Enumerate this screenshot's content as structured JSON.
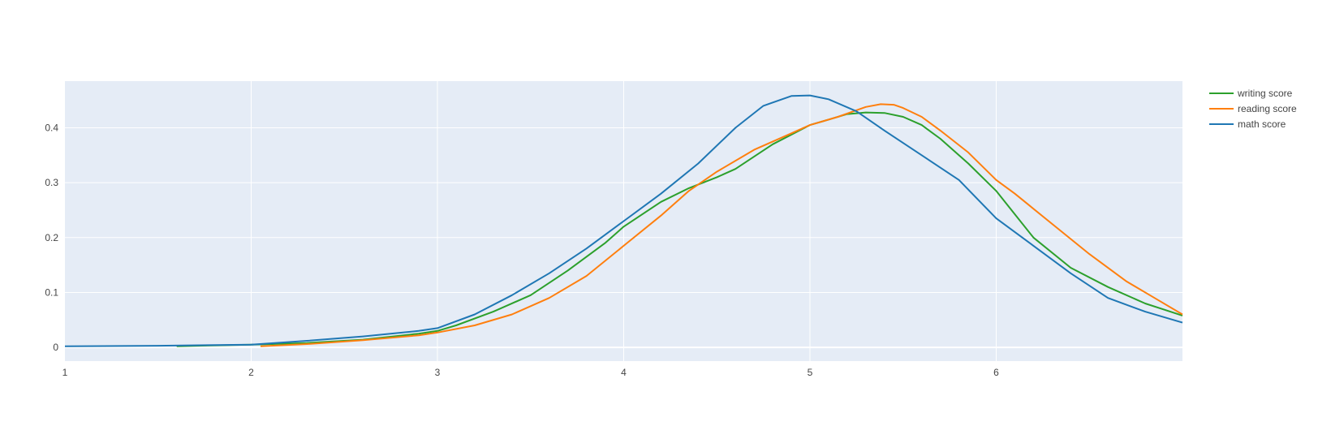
{
  "chart_data": {
    "type": "line",
    "title": "",
    "xlabel": "",
    "ylabel": "",
    "xlim": [
      1,
      7
    ],
    "ylim": [
      -0.025,
      0.485
    ],
    "xticks": [
      1,
      2,
      3,
      4,
      5,
      6
    ],
    "yticks": [
      0,
      0.1,
      0.2,
      0.3,
      0.4
    ],
    "xtick_labels": [
      "1",
      "2",
      "3",
      "4",
      "5",
      "6"
    ],
    "ytick_labels": [
      "0",
      "0.1",
      "0.2",
      "0.3",
      "0.4"
    ],
    "grid": true,
    "legend_position": "top-right",
    "plot_background": "#e5ecf6",
    "series": [
      {
        "name": "writing score",
        "color": "#2ca02c",
        "points": [
          [
            1.6,
            0.002
          ],
          [
            2,
            0.005
          ],
          [
            2.3,
            0.008
          ],
          [
            2.6,
            0.014
          ],
          [
            2.9,
            0.025
          ],
          [
            3,
            0.03
          ],
          [
            3.1,
            0.04
          ],
          [
            3.3,
            0.065
          ],
          [
            3.5,
            0.095
          ],
          [
            3.7,
            0.14
          ],
          [
            3.9,
            0.19
          ],
          [
            4,
            0.22
          ],
          [
            4.2,
            0.265
          ],
          [
            4.35,
            0.29
          ],
          [
            4.5,
            0.31
          ],
          [
            4.6,
            0.325
          ],
          [
            4.8,
            0.37
          ],
          [
            5,
            0.405
          ],
          [
            5.1,
            0.415
          ],
          [
            5.2,
            0.425
          ],
          [
            5.3,
            0.428
          ],
          [
            5.4,
            0.427
          ],
          [
            5.5,
            0.42
          ],
          [
            5.6,
            0.405
          ],
          [
            5.7,
            0.38
          ],
          [
            5.85,
            0.335
          ],
          [
            6,
            0.285
          ],
          [
            6.2,
            0.2
          ],
          [
            6.4,
            0.145
          ],
          [
            6.6,
            0.11
          ],
          [
            6.8,
            0.08
          ],
          [
            7,
            0.058
          ]
        ]
      },
      {
        "name": "reading score",
        "color": "#ff7f0e",
        "points": [
          [
            2.05,
            0.002
          ],
          [
            2.3,
            0.006
          ],
          [
            2.6,
            0.013
          ],
          [
            2.9,
            0.022
          ],
          [
            3,
            0.027
          ],
          [
            3.2,
            0.04
          ],
          [
            3.4,
            0.06
          ],
          [
            3.6,
            0.09
          ],
          [
            3.8,
            0.13
          ],
          [
            4,
            0.185
          ],
          [
            4.2,
            0.24
          ],
          [
            4.35,
            0.285
          ],
          [
            4.5,
            0.32
          ],
          [
            4.7,
            0.36
          ],
          [
            4.9,
            0.39
          ],
          [
            5,
            0.405
          ],
          [
            5.15,
            0.42
          ],
          [
            5.3,
            0.438
          ],
          [
            5.38,
            0.443
          ],
          [
            5.45,
            0.442
          ],
          [
            5.5,
            0.436
          ],
          [
            5.6,
            0.42
          ],
          [
            5.7,
            0.395
          ],
          [
            5.85,
            0.355
          ],
          [
            6,
            0.305
          ],
          [
            6.1,
            0.28
          ],
          [
            6.3,
            0.225
          ],
          [
            6.5,
            0.17
          ],
          [
            6.7,
            0.12
          ],
          [
            6.85,
            0.09
          ],
          [
            7,
            0.06
          ]
        ]
      },
      {
        "name": "math score",
        "color": "#1f77b4",
        "points": [
          [
            1,
            0.002
          ],
          [
            1.5,
            0.003
          ],
          [
            2,
            0.005
          ],
          [
            2.3,
            0.012
          ],
          [
            2.6,
            0.02
          ],
          [
            2.9,
            0.03
          ],
          [
            3,
            0.035
          ],
          [
            3.2,
            0.06
          ],
          [
            3.4,
            0.095
          ],
          [
            3.6,
            0.135
          ],
          [
            3.8,
            0.18
          ],
          [
            4,
            0.23
          ],
          [
            4.2,
            0.28
          ],
          [
            4.4,
            0.335
          ],
          [
            4.6,
            0.4
          ],
          [
            4.75,
            0.44
          ],
          [
            4.9,
            0.458
          ],
          [
            5,
            0.459
          ],
          [
            5.1,
            0.452
          ],
          [
            5.25,
            0.43
          ],
          [
            5.4,
            0.395
          ],
          [
            5.6,
            0.35
          ],
          [
            5.8,
            0.305
          ],
          [
            6,
            0.235
          ],
          [
            6.2,
            0.185
          ],
          [
            6.4,
            0.135
          ],
          [
            6.6,
            0.09
          ],
          [
            6.8,
            0.065
          ],
          [
            7,
            0.045
          ]
        ]
      }
    ]
  }
}
